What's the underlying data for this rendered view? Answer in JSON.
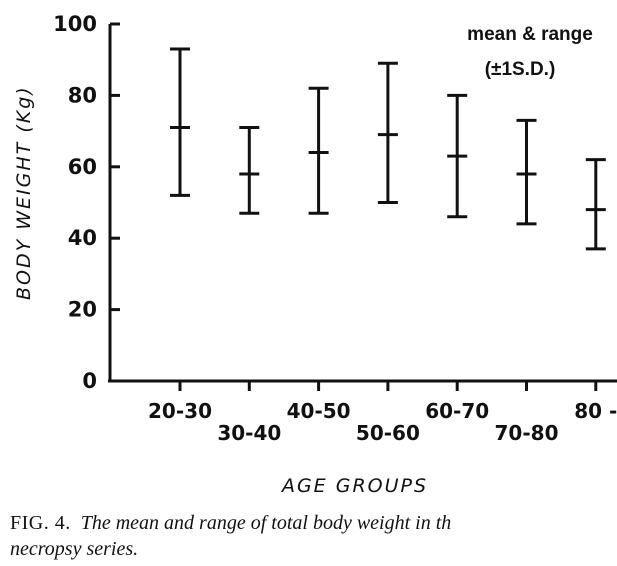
{
  "chart_data": {
    "type": "errorbar",
    "categories": [
      "20-30",
      "30-40",
      "40-50",
      "50-60",
      "60-70",
      "70-80",
      "80 -"
    ],
    "series": [
      {
        "name": "",
        "mean": [
          71,
          58,
          64,
          69,
          63,
          58,
          48
        ],
        "upper": [
          93,
          71,
          82,
          89,
          80,
          73,
          62
        ],
        "lower": [
          52,
          47,
          47,
          50,
          46,
          44,
          37
        ]
      }
    ],
    "title": "",
    "xlabel": "AGE GROUPS",
    "ylabel": "BODY WEIGHT (Kg)",
    "ylim": [
      0,
      100
    ],
    "yticks": [
      0,
      20,
      40,
      60,
      80,
      100
    ],
    "legend_line1": "mean & range",
    "legend_line2": "(±1S.D.)",
    "legend_position": "top-right",
    "grid": false
  },
  "caption": {
    "label": "FIG. 4.",
    "text": "The mean and range of total body weight in th",
    "text_line2": "necropsy series."
  }
}
